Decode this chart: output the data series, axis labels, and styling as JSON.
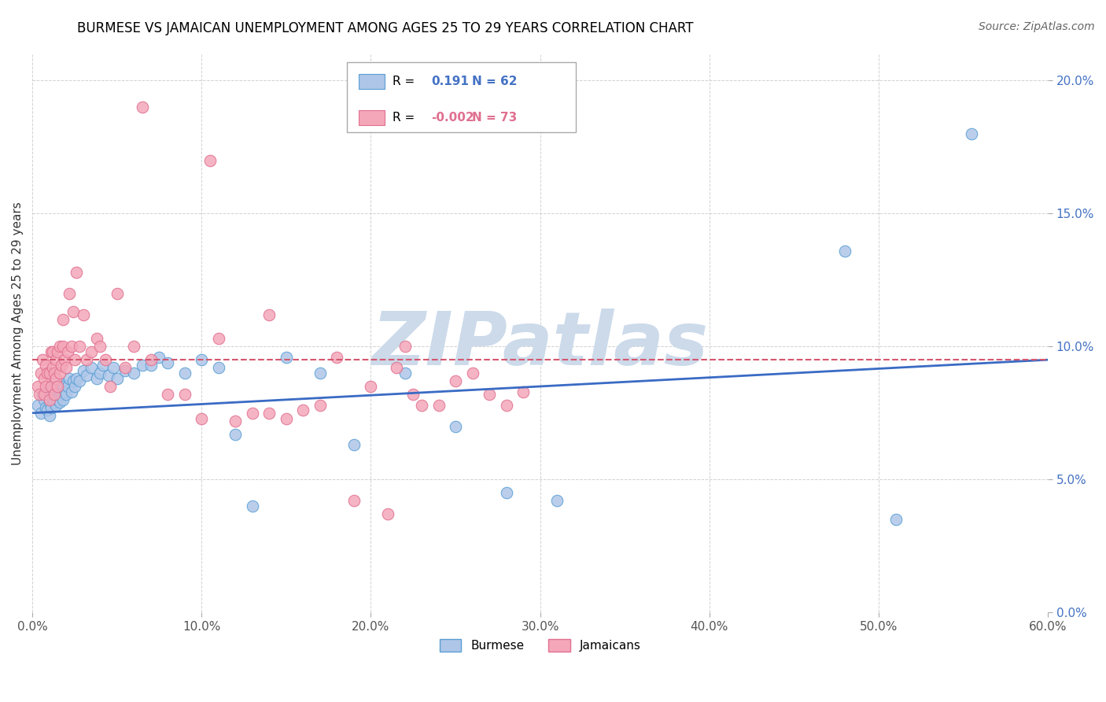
{
  "title": "BURMESE VS JAMAICAN UNEMPLOYMENT AMONG AGES 25 TO 29 YEARS CORRELATION CHART",
  "source": "Source: ZipAtlas.com",
  "ylabel": "Unemployment Among Ages 25 to 29 years",
  "xlim": [
    0.0,
    0.6
  ],
  "ylim": [
    0.0,
    0.21
  ],
  "xticks": [
    0.0,
    0.1,
    0.2,
    0.3,
    0.4,
    0.5,
    0.6
  ],
  "xticklabels": [
    "0.0%",
    "10.0%",
    "20.0%",
    "30.0%",
    "40.0%",
    "50.0%",
    "60.0%"
  ],
  "yticks": [
    0.0,
    0.05,
    0.1,
    0.15,
    0.2
  ],
  "yticklabels": [
    "0.0%",
    "5.0%",
    "10.0%",
    "15.0%",
    "20.0%"
  ],
  "burmese_color": "#aec6e8",
  "jamaican_color": "#f4a7b9",
  "burmese_edge": "#5a9fd4",
  "jamaican_edge": "#e07090",
  "trend_blue": "#3a6bc4",
  "trend_pink": "#d45870",
  "ytick_color": "#4472c4",
  "R_blue": 0.191,
  "N_blue": 62,
  "R_pink": -0.002,
  "N_pink": 73,
  "watermark": "ZIPatlas",
  "watermark_color": "#ccdaea",
  "burmese_x": [
    0.003,
    0.005,
    0.006,
    0.007,
    0.008,
    0.008,
    0.009,
    0.01,
    0.01,
    0.01,
    0.011,
    0.012,
    0.012,
    0.013,
    0.013,
    0.014,
    0.015,
    0.015,
    0.016,
    0.017,
    0.017,
    0.018,
    0.018,
    0.019,
    0.02,
    0.021,
    0.022,
    0.023,
    0.024,
    0.025,
    0.026,
    0.028,
    0.03,
    0.032,
    0.035,
    0.038,
    0.04,
    0.042,
    0.045,
    0.048,
    0.05,
    0.055,
    0.06,
    0.065,
    0.07,
    0.075,
    0.08,
    0.09,
    0.1,
    0.11,
    0.12,
    0.13,
    0.15,
    0.17,
    0.19,
    0.22,
    0.25,
    0.28,
    0.31,
    0.48,
    0.51,
    0.555
  ],
  "burmese_y": [
    0.078,
    0.075,
    0.082,
    0.08,
    0.077,
    0.083,
    0.076,
    0.074,
    0.079,
    0.082,
    0.077,
    0.08,
    0.085,
    0.079,
    0.083,
    0.078,
    0.08,
    0.084,
    0.079,
    0.082,
    0.086,
    0.08,
    0.085,
    0.083,
    0.082,
    0.085,
    0.088,
    0.083,
    0.087,
    0.085,
    0.088,
    0.087,
    0.091,
    0.089,
    0.092,
    0.088,
    0.09,
    0.093,
    0.089,
    0.092,
    0.088,
    0.091,
    0.09,
    0.093,
    0.093,
    0.096,
    0.094,
    0.09,
    0.095,
    0.092,
    0.067,
    0.04,
    0.096,
    0.09,
    0.063,
    0.09,
    0.07,
    0.045,
    0.042,
    0.136,
    0.035,
    0.18
  ],
  "jamaican_x": [
    0.003,
    0.004,
    0.005,
    0.006,
    0.007,
    0.007,
    0.008,
    0.008,
    0.009,
    0.01,
    0.01,
    0.011,
    0.011,
    0.012,
    0.012,
    0.013,
    0.013,
    0.014,
    0.014,
    0.015,
    0.015,
    0.016,
    0.016,
    0.017,
    0.018,
    0.018,
    0.019,
    0.02,
    0.021,
    0.022,
    0.023,
    0.024,
    0.025,
    0.026,
    0.028,
    0.03,
    0.032,
    0.035,
    0.038,
    0.04,
    0.043,
    0.046,
    0.05,
    0.055,
    0.06,
    0.07,
    0.08,
    0.09,
    0.1,
    0.11,
    0.12,
    0.13,
    0.14,
    0.15,
    0.16,
    0.17,
    0.18,
    0.19,
    0.2,
    0.21,
    0.215,
    0.22,
    0.225,
    0.23,
    0.24,
    0.25,
    0.26,
    0.27,
    0.28,
    0.29,
    0.065,
    0.105,
    0.14
  ],
  "jamaican_y": [
    0.085,
    0.082,
    0.09,
    0.095,
    0.082,
    0.088,
    0.085,
    0.093,
    0.09,
    0.08,
    0.09,
    0.085,
    0.098,
    0.092,
    0.098,
    0.082,
    0.09,
    0.088,
    0.095,
    0.085,
    0.098,
    0.09,
    0.1,
    0.093,
    0.1,
    0.11,
    0.095,
    0.092,
    0.098,
    0.12,
    0.1,
    0.113,
    0.095,
    0.128,
    0.1,
    0.112,
    0.095,
    0.098,
    0.103,
    0.1,
    0.095,
    0.085,
    0.12,
    0.092,
    0.1,
    0.095,
    0.082,
    0.082,
    0.073,
    0.103,
    0.072,
    0.075,
    0.075,
    0.073,
    0.076,
    0.078,
    0.096,
    0.042,
    0.085,
    0.037,
    0.092,
    0.1,
    0.082,
    0.078,
    0.078,
    0.087,
    0.09,
    0.082,
    0.078,
    0.083,
    0.19,
    0.17,
    0.112
  ],
  "blue_trend_y0": 0.075,
  "blue_trend_y1": 0.095,
  "pink_trend_y0": 0.095,
  "pink_trend_y1": 0.095
}
